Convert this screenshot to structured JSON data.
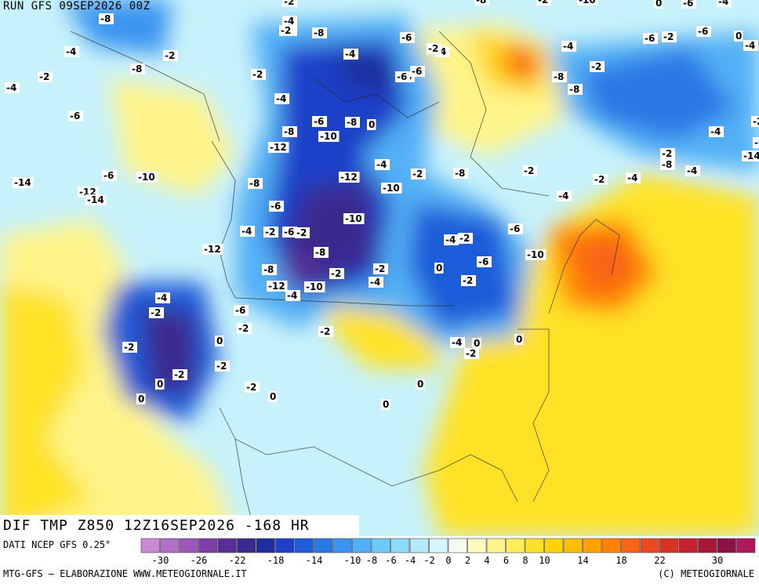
{
  "header": {
    "run_title": "RUN GFS 09SEP2026 00Z"
  },
  "map": {
    "title": "DIF TMP Z850 12Z16SEP2026 -168 HR",
    "contour_labels": [
      "-8",
      "-2",
      "-4",
      "-2",
      "0",
      "-6",
      "-4",
      "-8",
      "-2",
      "-10",
      "-2",
      "-8",
      "-6",
      "-4",
      "-2",
      "-4",
      "-8",
      "-6",
      "-6",
      "-8",
      "-8",
      "-4",
      "-2",
      "-6",
      "-2",
      "-6",
      "0",
      "-4",
      "-4",
      "-2",
      "-8",
      "-2",
      "-4",
      "-2",
      "-4",
      "-6",
      "-8",
      "-6",
      "-8",
      "0",
      "-10",
      "-12",
      "-4",
      "-2",
      "-8",
      "-14",
      "-6",
      "-2",
      "-4",
      "-2",
      "-2",
      "-4",
      "-4",
      "-6",
      "-10",
      "-12",
      "-14",
      "-14",
      "-8",
      "-6",
      "-12",
      "-4",
      "-2",
      "-8",
      "-10",
      "-10",
      "-4",
      "-2",
      "-6",
      "-2",
      "-8",
      "-12",
      "-6",
      "-10",
      "-4",
      "-2",
      "-6",
      "0",
      "-2",
      "-2",
      "-2",
      "-4",
      "-8",
      "-12",
      "-4",
      "-10",
      "-2",
      "-6",
      "-2",
      "-4",
      "-2",
      "-2",
      "0",
      "-2",
      "-2",
      "0",
      "0",
      "-2",
      "0",
      "0",
      "0",
      "-4",
      "-2",
      "0",
      "0"
    ],
    "colors": {
      "cold_extreme": "#5a3a9c",
      "cold_strong": "#1f3fc8",
      "cold": "#2f7ee6",
      "cool": "#78c8f5",
      "neutral": "#c8f2fb",
      "warm_light": "#fff8a0",
      "warm": "#ffd800",
      "warm_strong": "#ffa500",
      "hot": "#f0501e"
    }
  },
  "legend": {
    "source": "DATI NCEP GFS 0.25°",
    "tick_labels": [
      "-30",
      "-26",
      "-22",
      "-18",
      "-14",
      "-10",
      "-8",
      "-6",
      "-4",
      "-2",
      "0",
      "2",
      "4",
      "6",
      "8",
      "10",
      "14",
      "18",
      "22",
      "30"
    ],
    "swatches": [
      "#c88ad0",
      "#b070c4",
      "#9a56b8",
      "#7e3ea8",
      "#5a2e98",
      "#3a2a8e",
      "#1e2e9c",
      "#1f3fc8",
      "#1e5cd8",
      "#2a78e6",
      "#3a94f0",
      "#52b0f5",
      "#6ec8f8",
      "#8edcfa",
      "#b2ebfb",
      "#d4f6fc",
      "#f4fbf0",
      "#fffac0",
      "#fff48a",
      "#ffee5a",
      "#ffe228",
      "#ffd400",
      "#ffbe00",
      "#ffa200",
      "#ff8200",
      "#f86418",
      "#ea4a20",
      "#d83226",
      "#c2222e",
      "#a81836",
      "#8c1040",
      "#b0185c"
    ],
    "credit_left": "MTG-GFS – ELABORAZIONE WWW.METEOGIORNALE.IT",
    "credit_right": "(C) METEOGIORNALE"
  }
}
